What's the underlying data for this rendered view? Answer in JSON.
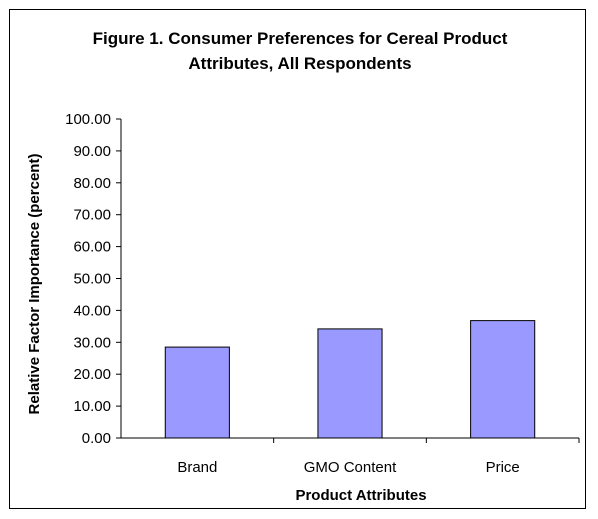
{
  "chart_data": {
    "type": "bar",
    "title": "Figure 1. Consumer Preferences for Cereal Product Attributes, All Respondents",
    "title_lines": [
      "Figure 1. Consumer Preferences for Cereal Product",
      "Attributes, All Respondents"
    ],
    "xlabel": "Product Attributes",
    "ylabel": "Relative Factor Importance (percent)",
    "categories": [
      "Brand",
      "GMO Content",
      "Price"
    ],
    "values": [
      28.5,
      34.2,
      36.8
    ],
    "ylim": [
      0,
      100
    ],
    "yticks": [
      "0.00",
      "10.00",
      "20.00",
      "30.00",
      "40.00",
      "50.00",
      "60.00",
      "70.00",
      "80.00",
      "90.00",
      "100.00"
    ],
    "grid": false,
    "legend": "none",
    "bar_color": "#9999FF",
    "bar_border_color": "#000000"
  }
}
